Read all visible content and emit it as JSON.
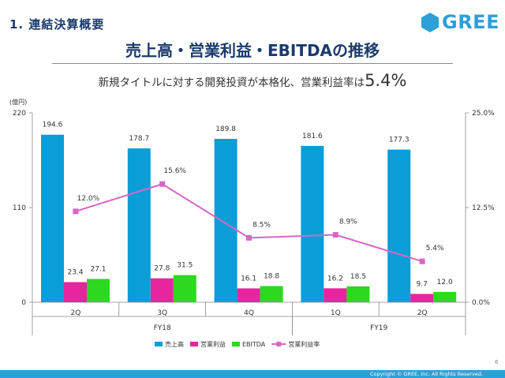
{
  "header": {
    "section_title": "1. 連結決算概要",
    "logo_text": "GREE",
    "logo_color": "#2d9fd9",
    "main_title": "売上高・営業利益・EBITDAの推移",
    "subtitle_prefix": "新規タイトルに対する開発投資が本格化、営業利益率は",
    "subtitle_highlight": "5.4%"
  },
  "footer": {
    "copyright": "Copyright © GREE, Inc. All Rights Reserved.",
    "page_number": "6",
    "bar_color": "#2d9fd9"
  },
  "chart_data": {
    "type": "bar",
    "categories": [
      "2Q",
      "3Q",
      "4Q",
      "1Q",
      "2Q"
    ],
    "category_groups": [
      {
        "label": "FY18",
        "span": [
          0,
          2
        ]
      },
      {
        "label": "FY19",
        "span": [
          3,
          4
        ]
      }
    ],
    "series": [
      {
        "name": "売上高",
        "values": [
          194.6,
          178.7,
          189.8,
          181.6,
          177.3
        ],
        "labels": [
          "194.6",
          "178.7",
          "189.8",
          "181.6",
          "177.3"
        ],
        "color": "#0a9ed8",
        "axis": "left",
        "kind": "bar"
      },
      {
        "name": "営業利益",
        "values": [
          23.4,
          27.8,
          16.1,
          16.2,
          9.7
        ],
        "labels": [
          "23.4",
          "27.8",
          "16.1",
          "16.2",
          "9.7"
        ],
        "color": "#e8259e",
        "axis": "left",
        "kind": "bar"
      },
      {
        "name": "EBITDA",
        "values": [
          27.1,
          31.5,
          18.8,
          18.5,
          12.0
        ],
        "labels": [
          "27.1",
          "31.5",
          "18.8",
          "18.5",
          "12.0"
        ],
        "color": "#2ed820",
        "axis": "left",
        "kind": "bar"
      },
      {
        "name": "営業利益率",
        "values": [
          12.0,
          15.6,
          8.5,
          8.9,
          5.4
        ],
        "labels": [
          "12.0%",
          "15.6%",
          "8.5%",
          "8.9%",
          "5.4%"
        ],
        "color": "#d965c6",
        "axis": "right",
        "kind": "line",
        "marker": "square"
      }
    ],
    "y_left": {
      "unit": "(億円)",
      "ylim": [
        0,
        220
      ],
      "ticks": [
        0,
        110,
        220
      ],
      "tick_labels": [
        "0",
        "110",
        "220"
      ]
    },
    "y_right": {
      "ylim": [
        0,
        25
      ],
      "ticks": [
        0,
        12.5,
        25
      ],
      "tick_labels": [
        "0.0%",
        "12.5%",
        "25.0%"
      ]
    },
    "grid": false,
    "legend_position": "bottom-center"
  }
}
